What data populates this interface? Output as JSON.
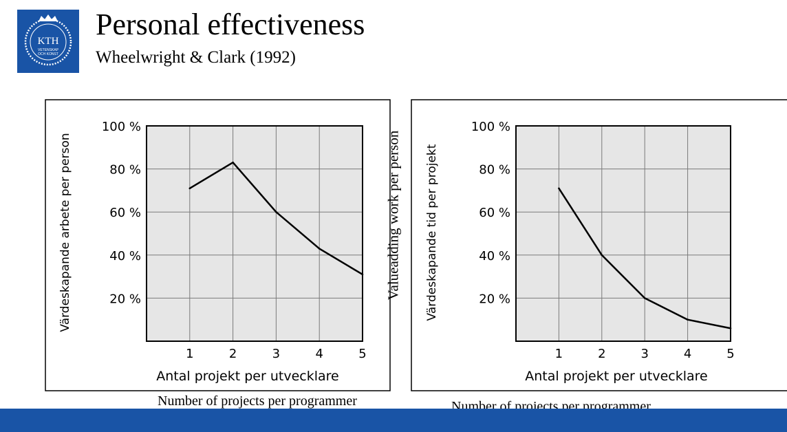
{
  "header": {
    "title": "Personal effectiveness",
    "subtitle": "Wheelwright & Clark (1992)",
    "logo": {
      "text": "KTH",
      "lines": [
        "VETENSKAP",
        "OCH KONST"
      ],
      "color": "#1954a6"
    }
  },
  "middle_label": "Valueadding work per person",
  "captions": {
    "left": "Number of projects per programmer",
    "right": "Number of projects per programmer"
  },
  "colors": {
    "footer": "#1954a6",
    "plot_bg": "#e6e6e6",
    "grid": "#7a7a7a",
    "line": "#000000"
  },
  "chart_data": [
    {
      "type": "line",
      "xlabel": "Antal projekt per utvecklare",
      "ylabel": "Värdeskapande arbete per person",
      "x": [
        1,
        2,
        3,
        4,
        5
      ],
      "y": [
        71,
        83,
        60,
        43,
        31
      ],
      "xlim": [
        0,
        5
      ],
      "ylim": [
        0,
        100
      ],
      "x_ticks": [
        "1",
        "2",
        "3",
        "4",
        "5"
      ],
      "y_ticks": [
        "20 %",
        "40 %",
        "60 %",
        "80 %",
        "100 %"
      ],
      "grid": true
    },
    {
      "type": "line",
      "xlabel": "Antal projekt per utvecklare",
      "ylabel": "Värdeskapande tid per projekt",
      "x": [
        1,
        2,
        3,
        4,
        5
      ],
      "y": [
        71,
        40,
        20,
        10,
        6
      ],
      "xlim": [
        0,
        5
      ],
      "ylim": [
        0,
        100
      ],
      "x_ticks": [
        "1",
        "2",
        "3",
        "4",
        "5"
      ],
      "y_ticks": [
        "20 %",
        "40 %",
        "60 %",
        "80 %",
        "100 %"
      ],
      "grid": true
    }
  ]
}
